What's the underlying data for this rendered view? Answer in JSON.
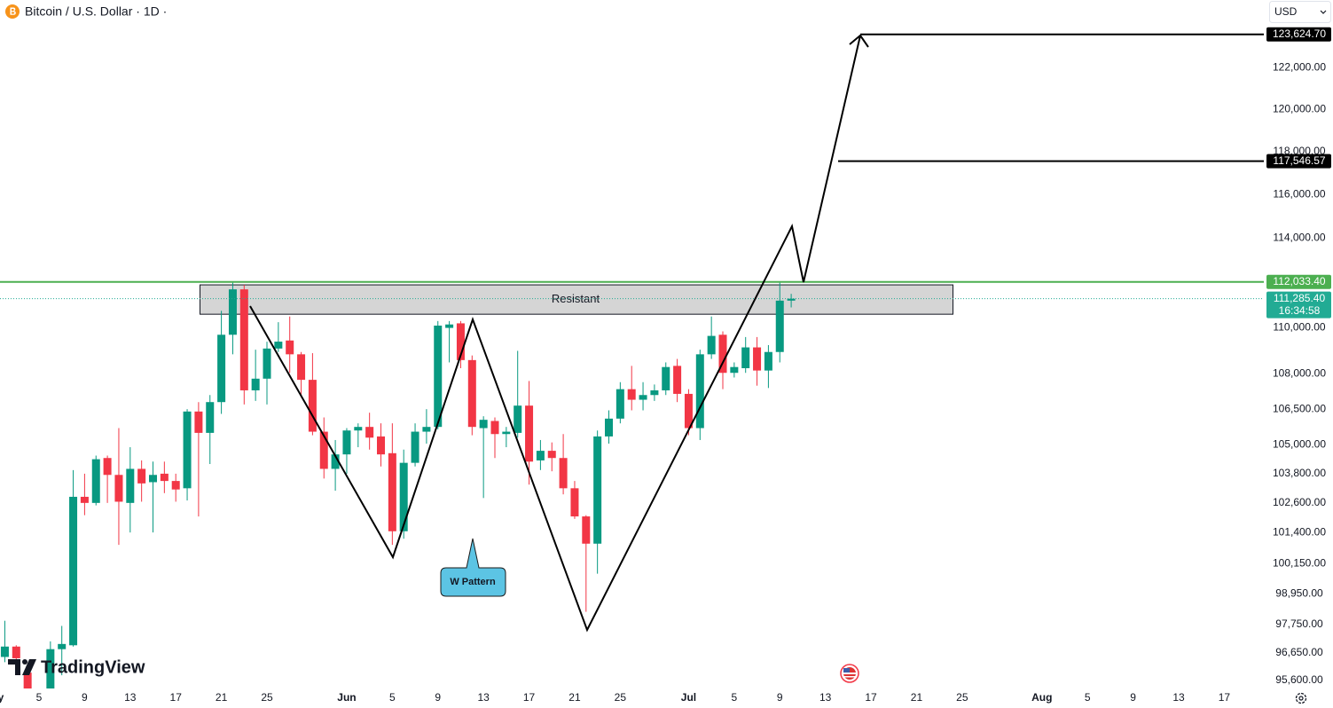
{
  "header": {
    "title": "Bitcoin / U.S. Dollar · 1D ·",
    "currency": "USD",
    "brand": "TradingView"
  },
  "chart_data": {
    "type": "candlestick",
    "categories": [
      "May",
      null,
      null,
      null,
      "5",
      null,
      null,
      null,
      "9",
      null,
      null,
      null,
      "13",
      null,
      null,
      null,
      "17",
      null,
      null,
      null,
      "21",
      null,
      null,
      null,
      "25",
      null,
      null,
      null,
      null,
      null,
      null,
      "Jun",
      null,
      null,
      null,
      "5",
      null,
      null,
      null,
      "9",
      null,
      null,
      null,
      "13",
      null,
      null,
      null,
      "17",
      null,
      null,
      null,
      "21",
      null,
      null,
      null,
      "25",
      null,
      null,
      null,
      null,
      null,
      "Jul",
      null,
      null,
      null,
      "5",
      null,
      null,
      null,
      "9",
      null,
      null,
      null,
      "13",
      null,
      null,
      null,
      "17",
      null,
      null,
      null,
      "21",
      null,
      null,
      null,
      "25",
      null,
      null,
      null,
      null,
      null,
      null,
      "Aug",
      null,
      null,
      null,
      "5",
      null,
      null,
      null,
      "9",
      null,
      null,
      null,
      "13",
      null,
      null,
      null,
      "17",
      null,
      null
    ],
    "open": [
      null,
      96500,
      96900,
      95900,
      94300,
      94700,
      96800,
      96950,
      102850,
      102600,
      104450,
      103750,
      102600,
      104000,
      103450,
      103800,
      103500,
      103200,
      106400,
      105500,
      106800,
      109700,
      111700,
      107300,
      107800,
      109100,
      109450,
      108850,
      107750,
      105550,
      104000,
      104600,
      105600,
      105750,
      105350,
      104650,
      101450,
      104250,
      105550,
      105750,
      110000,
      110200,
      108600,
      105700,
      106000,
      105450,
      105500,
      106650,
      104350,
      104750,
      104450,
      103200,
      102050,
      100950,
      105350,
      106100,
      107350,
      106900,
      107100,
      107300,
      108350,
      107150,
      105700,
      108850,
      109700,
      108050,
      108250,
      109150,
      108150,
      108950,
      111200,
      null,
      null,
      null,
      null,
      null,
      null,
      null,
      null,
      null,
      null,
      null,
      null,
      null,
      null,
      null,
      null,
      null,
      null,
      null,
      null,
      null,
      null,
      null,
      null,
      null,
      null,
      null,
      null,
      null,
      null,
      null,
      null,
      null,
      null,
      null,
      null,
      null,
      null,
      null,
      null
    ],
    "high": [
      null,
      97900,
      96950,
      96000,
      95200,
      97100,
      97700,
      103950,
      103800,
      104550,
      104550,
      105700,
      104900,
      104350,
      104300,
      104300,
      103800,
      106500,
      106800,
      107100,
      110750,
      112000,
      111900,
      109050,
      109400,
      110250,
      110500,
      108950,
      108900,
      106150,
      105200,
      105700,
      105900,
      106350,
      105900,
      105900,
      104800,
      105900,
      106500,
      110300,
      110300,
      110300,
      108800,
      106200,
      106150,
      105750,
      109000,
      107700,
      105200,
      105100,
      105450,
      103500,
      102100,
      105600,
      106450,
      107650,
      108350,
      107650,
      107550,
      108500,
      108650,
      107350,
      109050,
      110500,
      109850,
      108500,
      109600,
      109600,
      109250,
      112000,
      111500,
      null,
      null,
      null,
      null,
      null,
      null,
      null,
      null,
      null,
      null,
      null,
      null,
      null,
      null,
      null,
      null,
      null,
      null,
      null,
      null,
      null,
      null,
      null,
      null,
      null,
      null,
      null,
      null,
      null,
      null,
      null,
      null,
      null,
      null,
      null,
      null,
      null,
      null,
      null,
      null
    ],
    "low": [
      null,
      96300,
      96300,
      94200,
      93500,
      94200,
      95800,
      96900,
      102100,
      102500,
      102600,
      100900,
      101400,
      102650,
      101400,
      103000,
      102650,
      102700,
      102050,
      104200,
      106300,
      108850,
      106700,
      106850,
      106700,
      108950,
      108050,
      107000,
      105400,
      103600,
      103100,
      103800,
      104900,
      104800,
      104100,
      100900,
      101150,
      104100,
      105050,
      105650,
      108500,
      108250,
      105400,
      102800,
      104450,
      104900,
      105300,
      103350,
      103950,
      103900,
      102950,
      101950,
      98250,
      99750,
      105050,
      105900,
      106450,
      106450,
      106850,
      107100,
      106800,
      105400,
      105200,
      108650,
      107350,
      107850,
      108050,
      107500,
      107400,
      108500,
      110900,
      null,
      null,
      null,
      null,
      null,
      null,
      null,
      null,
      null,
      null,
      null,
      null,
      null,
      null,
      null,
      null,
      null,
      null,
      null,
      null,
      null,
      null,
      null,
      null,
      null,
      null,
      null,
      null,
      null,
      null,
      null,
      null,
      null,
      null,
      null,
      null,
      null,
      null,
      null,
      null
    ],
    "close": [
      null,
      96900,
      96450,
      94300,
      94700,
      96800,
      97000,
      102850,
      102600,
      104400,
      103750,
      102650,
      104000,
      103400,
      103750,
      103500,
      103150,
      106400,
      105500,
      106800,
      109700,
      111700,
      107300,
      107800,
      109100,
      109400,
      108850,
      107750,
      105550,
      104000,
      104600,
      105600,
      105750,
      105300,
      104600,
      101450,
      104250,
      105550,
      105750,
      110100,
      110150,
      108600,
      105750,
      106050,
      105450,
      105550,
      106650,
      104300,
      104750,
      104450,
      103200,
      102050,
      100950,
      105350,
      106100,
      107350,
      106900,
      107100,
      107300,
      108300,
      107150,
      105700,
      108850,
      109650,
      108050,
      108300,
      109150,
      108150,
      108950,
      111200,
      111285.4,
      null,
      null,
      null,
      null,
      null,
      null,
      null,
      null,
      null,
      null,
      null,
      null,
      null,
      null,
      null,
      null,
      null,
      null,
      null,
      null,
      null,
      null,
      null,
      null,
      null,
      null,
      null,
      null,
      null,
      null,
      null,
      null,
      null,
      null,
      null,
      null,
      null,
      null,
      null,
      null
    ],
    "up_color": "#089981",
    "down_color": "#f23645",
    "ylim": [
      94560,
      125330
    ],
    "log_scale": true,
    "yticks": [
      {
        "value": 95600,
        "label": "95,600.00"
      },
      {
        "value": 96650,
        "label": "96,650.00"
      },
      {
        "value": 97750,
        "label": "97,750.00"
      },
      {
        "value": 98950,
        "label": "98,950.00"
      },
      {
        "value": 100150,
        "label": "100,150.00"
      },
      {
        "value": 101400,
        "label": "101,400.00"
      },
      {
        "value": 102600,
        "label": "102,600.00"
      },
      {
        "value": 103800,
        "label": "103,800.00"
      },
      {
        "value": 105000,
        "label": "105,000.00"
      },
      {
        "value": 106500,
        "label": "106,500.00"
      },
      {
        "value": 108000,
        "label": "108,000.00"
      },
      {
        "value": 110000,
        "label": "110,000.00"
      },
      {
        "value": 114000,
        "label": "114,000.00"
      },
      {
        "value": 116000,
        "label": "116,000.00"
      },
      {
        "value": 118000,
        "label": "118,000.00"
      },
      {
        "value": 120000,
        "label": "120,000.00"
      },
      {
        "value": 122000,
        "label": "122,000.00"
      }
    ],
    "price_levels": [
      {
        "value": 123624.7,
        "label": "123,624.70",
        "color": "#000000"
      },
      {
        "value": 117546.57,
        "label": "117,546.57",
        "color": "#000000"
      },
      {
        "value": 112033.4,
        "label": "112,033.40",
        "color": "#4caf50"
      }
    ],
    "last_price": {
      "value": 111285.4,
      "label": "111,285.40",
      "countdown": "16:34:58",
      "color": "#22ab94"
    },
    "zone": {
      "label": "Resistant",
      "top": 111900,
      "bottom": 110600
    },
    "pattern_label": "W Pattern"
  }
}
